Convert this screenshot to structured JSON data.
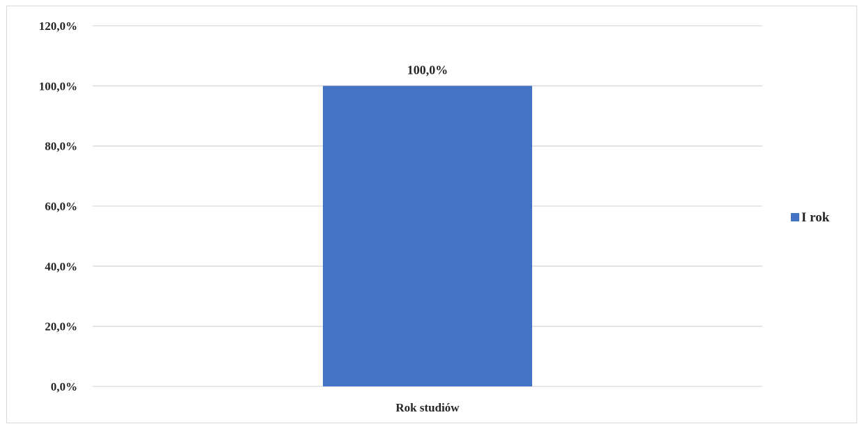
{
  "chart_data": {
    "type": "bar",
    "categories": [
      "Rok studiów"
    ],
    "series": [
      {
        "name": "I rok",
        "values": [
          100.0
        ],
        "color": "#4472c4",
        "data_labels": [
          "100,0%"
        ]
      }
    ],
    "ylim": [
      0,
      120
    ],
    "yticks": [
      0,
      20,
      40,
      60,
      80,
      100,
      120
    ],
    "ytick_labels": [
      "0,0%",
      "20,0%",
      "40,0%",
      "60,0%",
      "80,0%",
      "100,0%",
      "120,0%"
    ],
    "grid": true,
    "legend": "right"
  }
}
